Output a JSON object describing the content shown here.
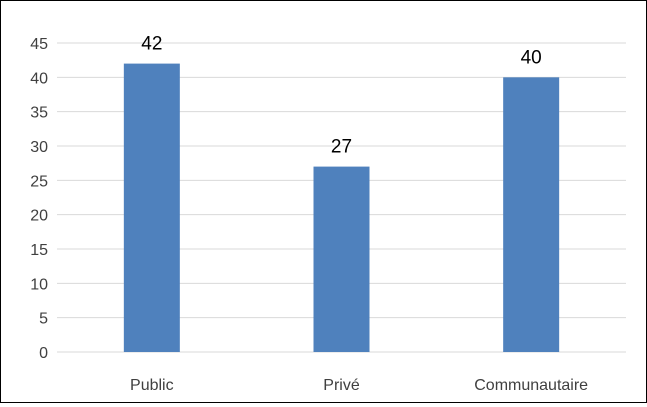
{
  "chart_data": {
    "type": "bar",
    "categories": [
      "Public",
      "Privé",
      "Communautaire"
    ],
    "values": [
      42,
      27,
      40
    ],
    "data_labels": [
      "42",
      "27",
      "40"
    ],
    "ylim": [
      0,
      45
    ],
    "y_ticks": [
      0,
      5,
      10,
      15,
      20,
      25,
      30,
      35,
      40,
      45
    ],
    "y_tick_labels": [
      "0",
      "5",
      "10",
      "15",
      "20",
      "25",
      "30",
      "35",
      "40",
      "45"
    ],
    "grid": true,
    "legend": false,
    "title": "",
    "xlabel": "",
    "ylabel": "",
    "colors": {
      "bar": "#4f81bd",
      "grid": "#d9d9d9",
      "axis_text": "#404040",
      "data_label": "#000000"
    }
  }
}
